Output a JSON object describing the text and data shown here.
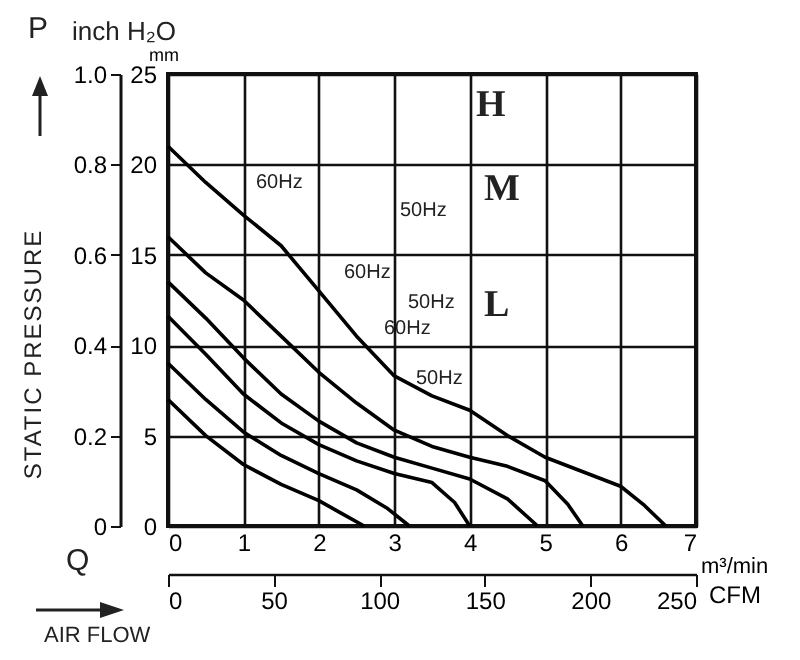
{
  "chart_data": {
    "type": "line",
    "ylabel": "mm",
    "xlabel": "m³/min",
    "x2label": "CFM",
    "xlim": [
      0,
      7
    ],
    "xticks": [
      0,
      1,
      2,
      3,
      4,
      5,
      6,
      7
    ],
    "ylim": [
      0,
      25
    ],
    "yticks": [
      0,
      5,
      10,
      15,
      20,
      25
    ],
    "x2lim": [
      0,
      250
    ],
    "x2ticks": [
      0,
      50,
      100,
      150,
      200,
      250
    ],
    "y2lim": [
      0,
      1
    ],
    "y2ticks": [
      0,
      0.2,
      0.4,
      0.6,
      0.8,
      {
        "value": 1,
        "label": "1.0"
      }
    ],
    "grid": true,
    "series": [
      {
        "type": "line",
        "color": "#000000",
        "x": [
          0,
          0.5,
          1,
          1.5,
          2,
          2.5,
          3,
          3.5,
          4,
          4.5,
          5,
          5.5,
          6,
          6.3,
          6.6
        ],
        "values": [
          21,
          19,
          17.2,
          15.5,
          13,
          10.5,
          8.3,
          7.2,
          6.4,
          5,
          3.8,
          3,
          2.2,
          1.2,
          0
        ]
      },
      {
        "type": "line",
        "color": "#000000",
        "x": [
          0,
          0.5,
          1,
          1.5,
          2,
          2.5,
          3,
          3.5,
          4,
          4.5,
          5,
          5.3,
          5.5
        ],
        "values": [
          16,
          14,
          12.5,
          10.5,
          8.5,
          6.8,
          5.3,
          4.4,
          3.8,
          3.3,
          2.5,
          1.2,
          0
        ]
      },
      {
        "type": "line",
        "color": "#000000",
        "x": [
          0,
          0.5,
          1,
          1.5,
          2,
          2.5,
          3,
          3.5,
          4,
          4.5,
          4.9
        ],
        "values": [
          13.5,
          11.5,
          9.3,
          7.3,
          5.8,
          4.6,
          3.8,
          3.2,
          2.6,
          1.5,
          0
        ]
      },
      {
        "type": "line",
        "color": "#000000",
        "x": [
          0,
          0.5,
          1,
          1.5,
          2,
          2.5,
          3,
          3.5,
          3.8,
          4.0
        ],
        "values": [
          11.6,
          9.5,
          7.3,
          5.7,
          4.5,
          3.6,
          2.9,
          2.4,
          1.3,
          0
        ]
      },
      {
        "type": "line",
        "color": "#000000",
        "x": [
          0,
          0.5,
          1,
          1.5,
          2,
          2.5,
          2.9,
          3.2
        ],
        "values": [
          9,
          7,
          5.2,
          3.9,
          2.9,
          2,
          1,
          0
        ]
      },
      {
        "type": "line",
        "color": "#000000",
        "x": [
          0,
          0.5,
          1,
          1.5,
          2,
          2.3,
          2.6
        ],
        "values": [
          7,
          5,
          3.4,
          2.3,
          1.4,
          0.7,
          0
        ]
      }
    ],
    "annotations": [
      "inch H₂O",
      "P",
      "STATIC PRESSURE",
      "Q",
      "AIR FLOW",
      "H",
      "M",
      "L",
      "60Hz",
      "50Hz",
      "60Hz",
      "50Hz",
      "60Hz",
      "50Hz"
    ]
  }
}
